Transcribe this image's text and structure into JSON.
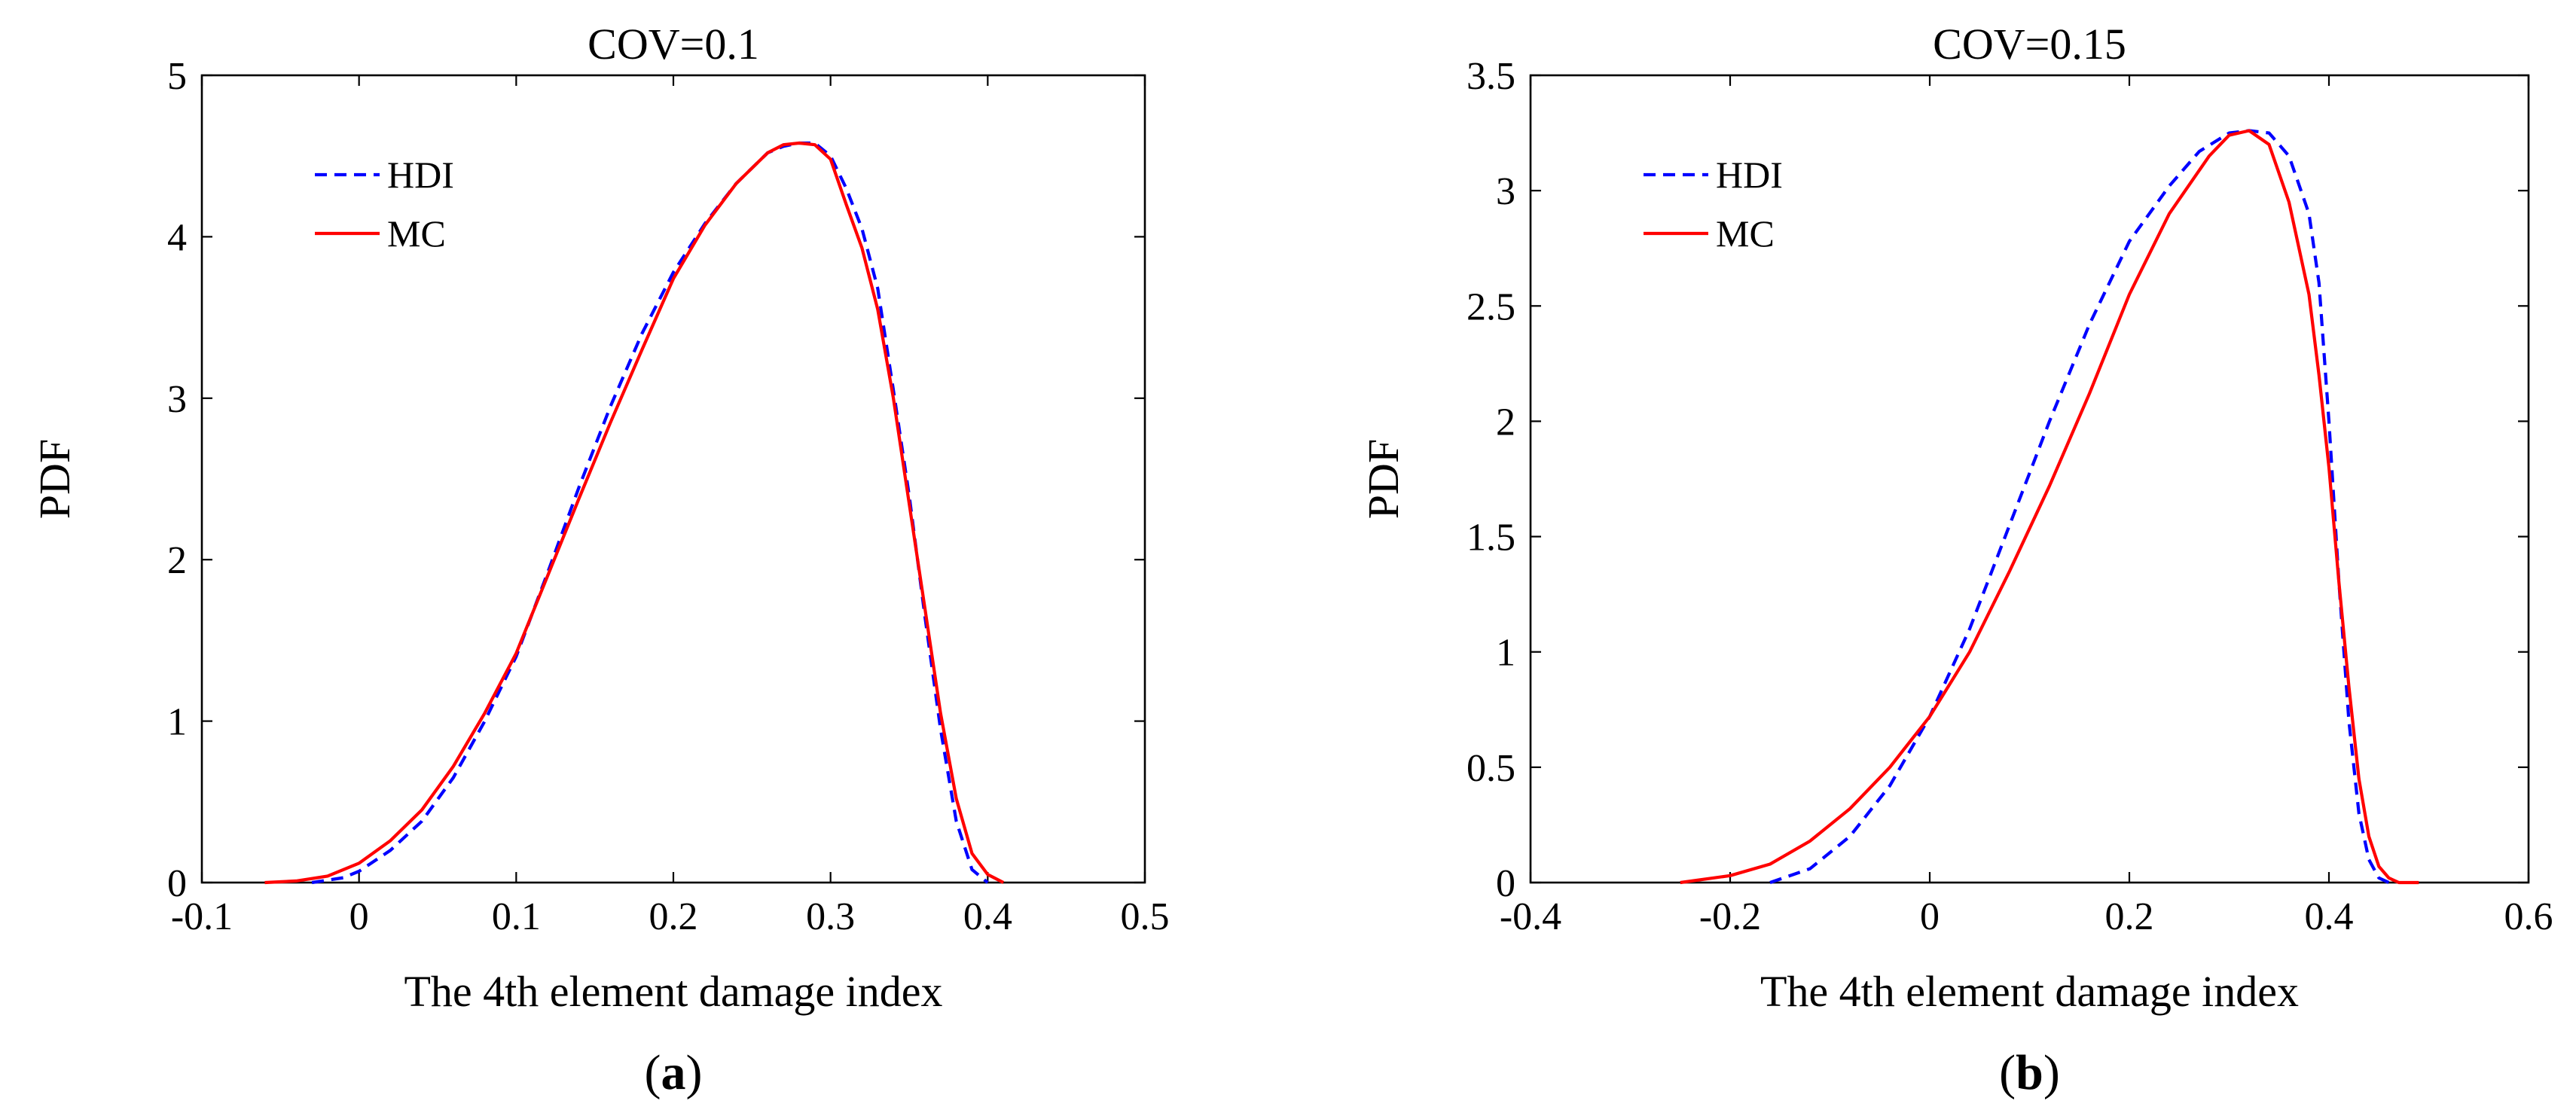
{
  "chart_data": [
    {
      "type": "line",
      "title": "COV=0.1",
      "xlabel": "The 4th element damage index",
      "ylabel": "PDF",
      "xlim": [
        -0.1,
        0.5
      ],
      "ylim": [
        0,
        5
      ],
      "xticks": [
        -0.1,
        0,
        0.1,
        0.2,
        0.3,
        0.4,
        0.5
      ],
      "xtick_labels": [
        "-0.1",
        "0",
        "0.1",
        "0.2",
        "0.3",
        "0.4",
        "0.5"
      ],
      "yticks": [
        0,
        1,
        2,
        3,
        4,
        5
      ],
      "ytick_labels": [
        "0",
        "1",
        "2",
        "3",
        "4",
        "5"
      ],
      "legend_position": "top-left",
      "caption_letter": "a",
      "series": [
        {
          "name": "HDI",
          "color": "#0000ff",
          "style": "dashed",
          "x": [
            -0.03,
            -0.01,
            0.0,
            0.02,
            0.04,
            0.06,
            0.08,
            0.1,
            0.12,
            0.14,
            0.16,
            0.18,
            0.2,
            0.22,
            0.24,
            0.26,
            0.27,
            0.28,
            0.29,
            0.3,
            0.31,
            0.32,
            0.33,
            0.34,
            0.35,
            0.36,
            0.37,
            0.38,
            0.39,
            0.4
          ],
          "y": [
            0.0,
            0.03,
            0.07,
            0.2,
            0.38,
            0.65,
            1.0,
            1.4,
            1.92,
            2.45,
            2.95,
            3.4,
            3.78,
            4.08,
            4.33,
            4.52,
            4.56,
            4.58,
            4.58,
            4.5,
            4.3,
            4.05,
            3.68,
            3.05,
            2.4,
            1.65,
            0.95,
            0.38,
            0.08,
            0.0
          ]
        },
        {
          "name": "MC",
          "color": "#ff0000",
          "style": "solid",
          "x": [
            -0.06,
            -0.04,
            -0.02,
            0.0,
            0.02,
            0.04,
            0.06,
            0.08,
            0.1,
            0.12,
            0.14,
            0.16,
            0.18,
            0.2,
            0.22,
            0.24,
            0.26,
            0.27,
            0.28,
            0.29,
            0.3,
            0.31,
            0.32,
            0.33,
            0.34,
            0.35,
            0.36,
            0.37,
            0.38,
            0.39,
            0.4,
            0.41
          ],
          "y": [
            0.0,
            0.01,
            0.04,
            0.12,
            0.26,
            0.45,
            0.72,
            1.05,
            1.42,
            1.9,
            2.38,
            2.85,
            3.3,
            3.74,
            4.07,
            4.33,
            4.52,
            4.57,
            4.58,
            4.57,
            4.48,
            4.2,
            3.93,
            3.55,
            3.0,
            2.35,
            1.7,
            1.05,
            0.52,
            0.18,
            0.05,
            0.0
          ]
        }
      ]
    },
    {
      "type": "line",
      "title": "COV=0.15",
      "xlabel": "The 4th element damage index",
      "ylabel": "PDF",
      "xlim": [
        -0.4,
        0.6
      ],
      "ylim": [
        0,
        3.5
      ],
      "xticks": [
        -0.4,
        -0.2,
        0,
        0.2,
        0.4,
        0.6
      ],
      "xtick_labels": [
        "-0.4",
        "-0.2",
        "0",
        "0.2",
        "0.4",
        "0.6"
      ],
      "yticks": [
        0,
        0.5,
        1,
        1.5,
        2,
        2.5,
        3,
        3.5
      ],
      "ytick_labels": [
        "0",
        "0.5",
        "1",
        "1.5",
        "2",
        "2.5",
        "3",
        "3.5"
      ],
      "legend_position": "top-left",
      "caption_letter": "b",
      "series": [
        {
          "name": "HDI",
          "color": "#0000ff",
          "style": "dashed",
          "x": [
            -0.16,
            -0.12,
            -0.08,
            -0.04,
            0.0,
            0.04,
            0.08,
            0.12,
            0.16,
            0.2,
            0.24,
            0.27,
            0.3,
            0.32,
            0.34,
            0.36,
            0.38,
            0.39,
            0.4,
            0.41,
            0.42,
            0.43,
            0.44,
            0.45,
            0.46
          ],
          "y": [
            0.0,
            0.06,
            0.2,
            0.42,
            0.72,
            1.1,
            1.55,
            2.0,
            2.42,
            2.78,
            3.02,
            3.17,
            3.25,
            3.26,
            3.25,
            3.15,
            2.9,
            2.6,
            2.0,
            1.3,
            0.7,
            0.3,
            0.1,
            0.02,
            0.0
          ]
        },
        {
          "name": "MC",
          "color": "#ff0000",
          "style": "solid",
          "x": [
            -0.25,
            -0.2,
            -0.16,
            -0.12,
            -0.08,
            -0.04,
            0.0,
            0.04,
            0.08,
            0.12,
            0.16,
            0.2,
            0.24,
            0.28,
            0.3,
            0.32,
            0.34,
            0.36,
            0.38,
            0.39,
            0.4,
            0.41,
            0.42,
            0.43,
            0.44,
            0.45,
            0.46,
            0.47,
            0.49
          ],
          "y": [
            0.0,
            0.03,
            0.08,
            0.18,
            0.32,
            0.5,
            0.72,
            1.0,
            1.35,
            1.72,
            2.12,
            2.55,
            2.9,
            3.15,
            3.24,
            3.26,
            3.2,
            2.95,
            2.55,
            2.2,
            1.8,
            1.3,
            0.85,
            0.45,
            0.2,
            0.07,
            0.02,
            0.0,
            0.0
          ]
        }
      ]
    }
  ]
}
